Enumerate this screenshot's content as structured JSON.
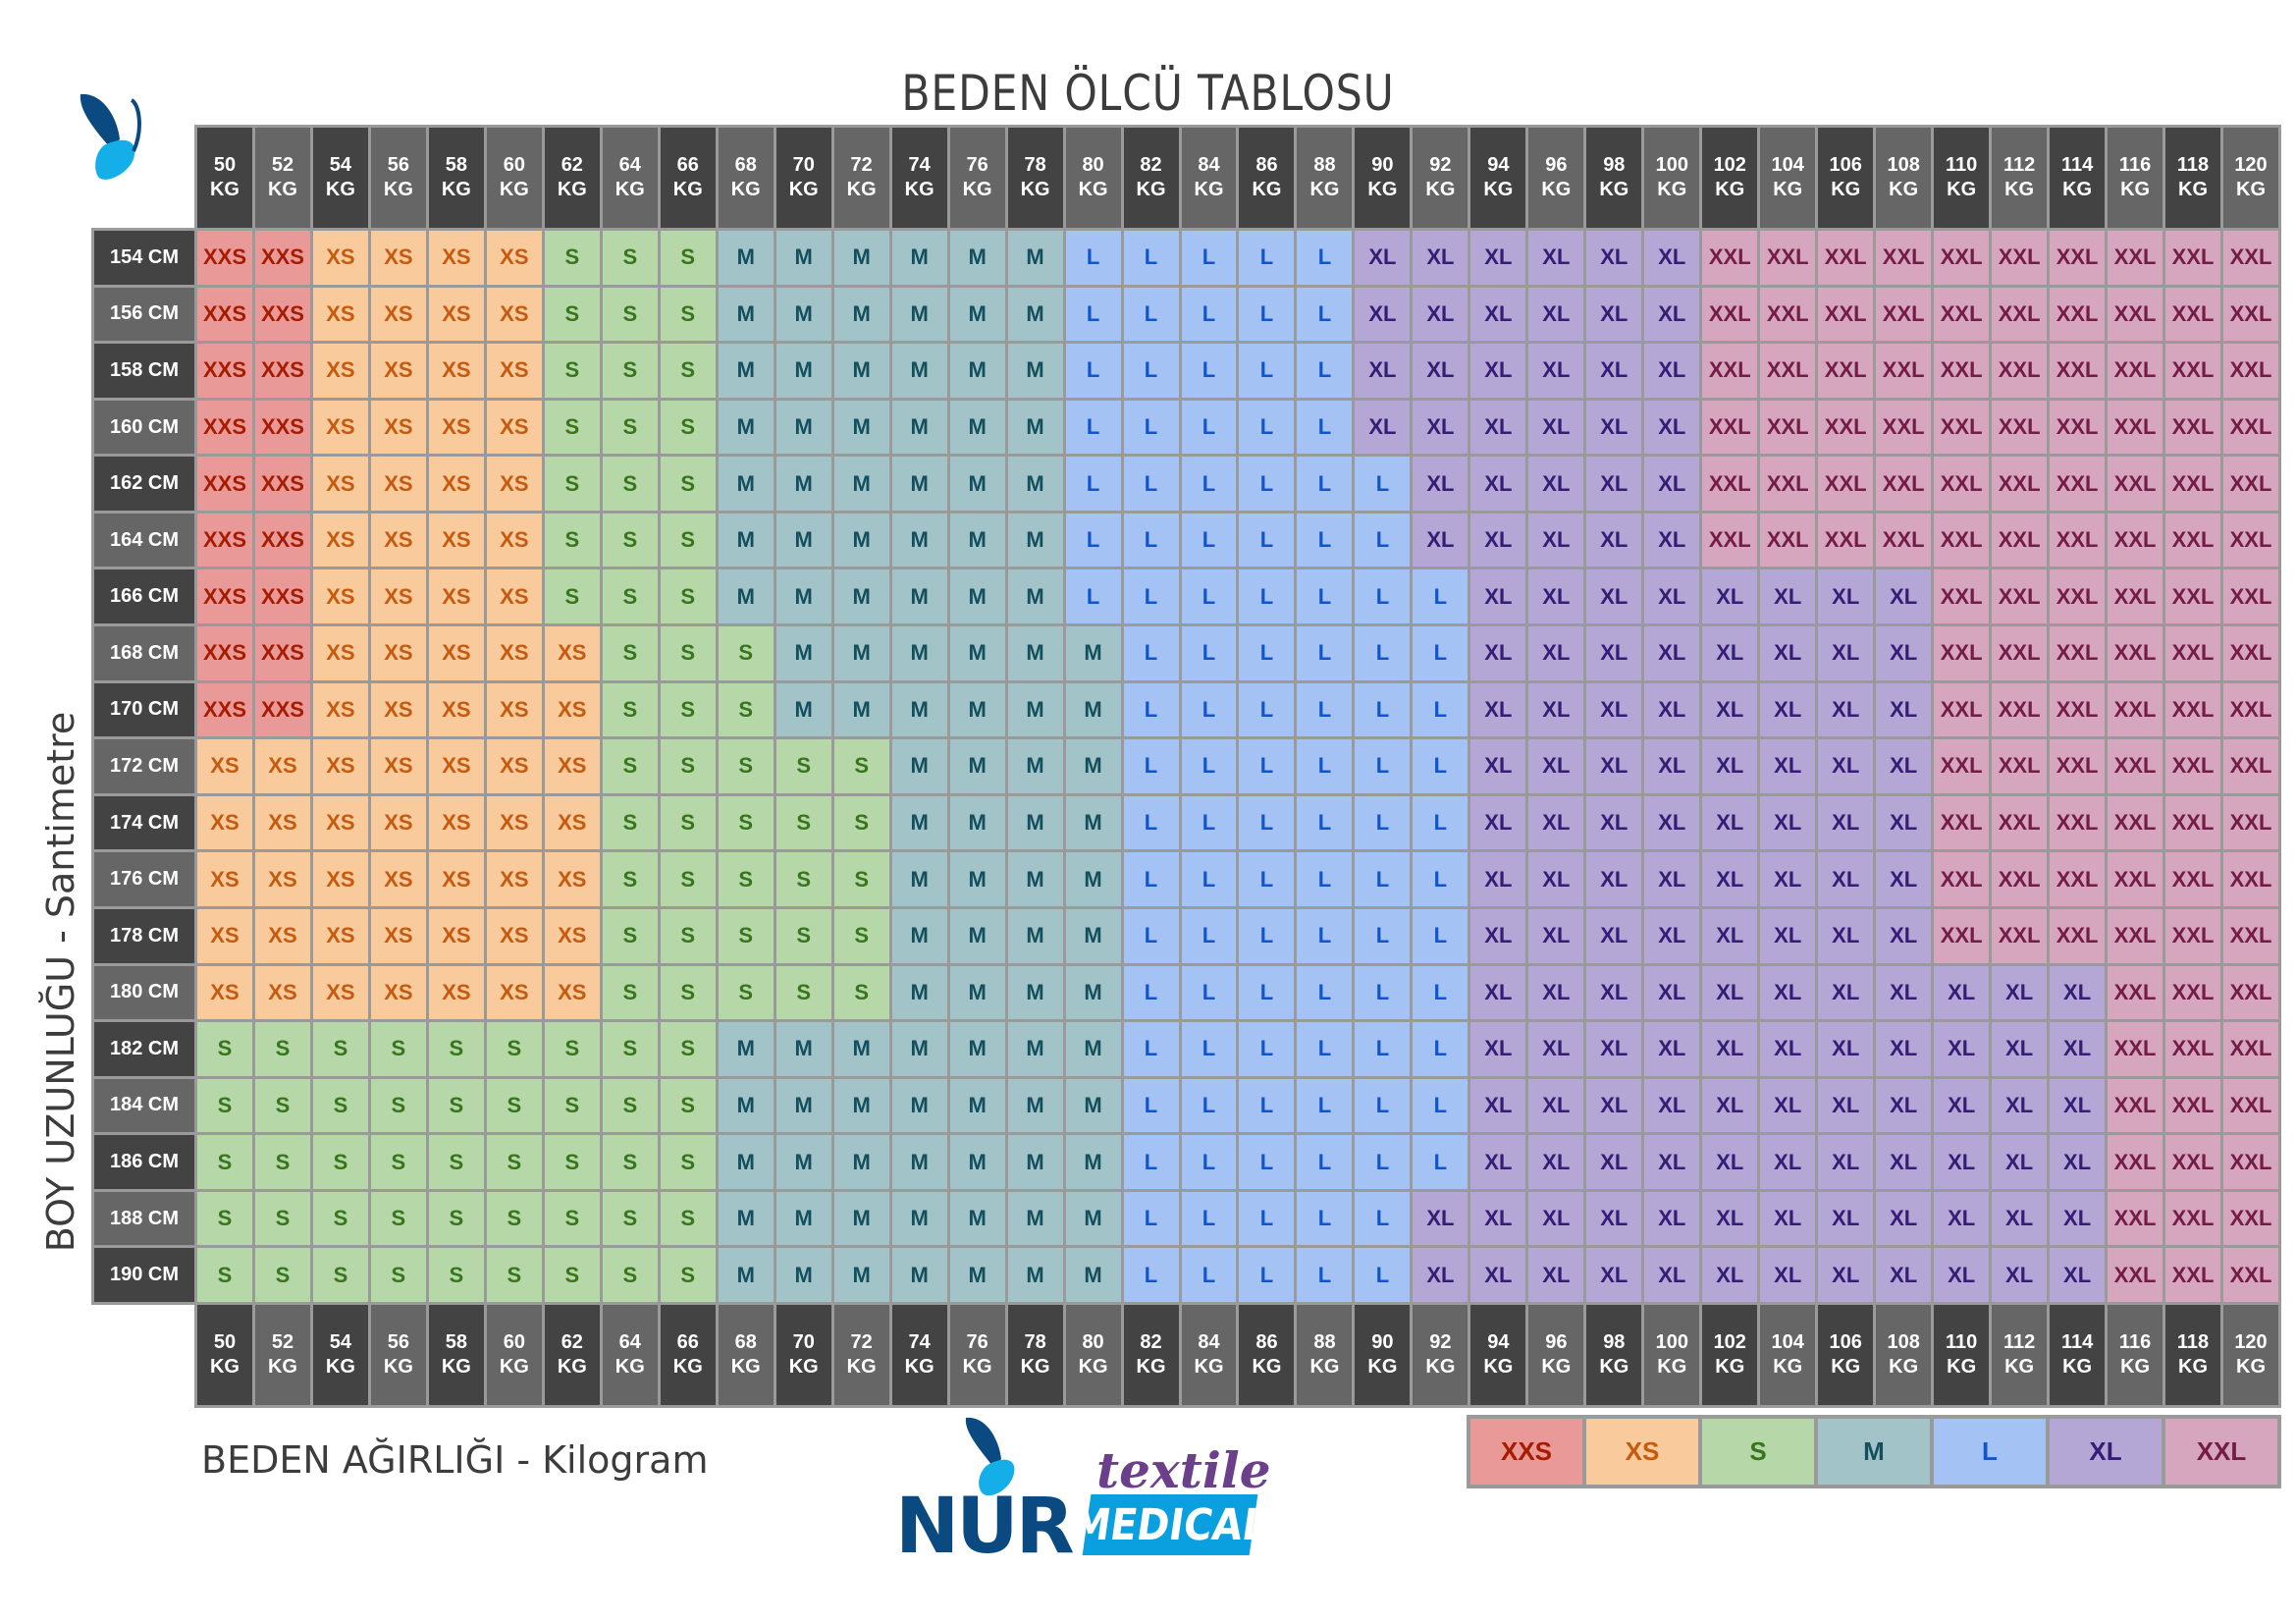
{
  "title": "BEDEN ÖLCÜ TABLOSU",
  "y_axis_label": "BOY UZUNLUĞU - Santimetre",
  "x_axis_label": "BEDEN AĞIRLIĞI - Kilogram",
  "weight_unit": "KG",
  "height_unit": "CM",
  "weights": [
    50,
    52,
    54,
    56,
    58,
    60,
    62,
    64,
    66,
    68,
    70,
    72,
    74,
    76,
    78,
    80,
    82,
    84,
    86,
    88,
    90,
    92,
    94,
    96,
    98,
    100,
    102,
    104,
    106,
    108,
    110,
    112,
    114,
    116,
    118,
    120
  ],
  "heights": [
    154,
    156,
    158,
    160,
    162,
    164,
    166,
    168,
    170,
    172,
    174,
    176,
    178,
    180,
    182,
    184,
    186,
    188,
    190
  ],
  "sizes": {
    "XXS": {
      "label": "XXS",
      "bg": "#ea9999",
      "fg": "#a61c00"
    },
    "XS": {
      "label": "XS",
      "bg": "#f9cb9c",
      "fg": "#c55a11"
    },
    "S": {
      "label": "S",
      "bg": "#b6d7a8",
      "fg": "#38761d"
    },
    "M": {
      "label": "M",
      "bg": "#a2c4c9",
      "fg": "#134f5c"
    },
    "L": {
      "label": "L",
      "bg": "#a4c2f4",
      "fg": "#1155cc"
    },
    "XL": {
      "label": "XL",
      "bg": "#b4a7d6",
      "fg": "#351c75"
    },
    "XXL": {
      "label": "XXL",
      "bg": "#d5a6bd",
      "fg": "#741b47"
    }
  },
  "legend": [
    "XXS",
    "XS",
    "S",
    "M",
    "L",
    "XL",
    "XXL"
  ],
  "header_colors": {
    "dark": "#434343",
    "gray": "#666666"
  },
  "grid": [
    [
      "XXS",
      "XXS",
      "XS",
      "XS",
      "XS",
      "XS",
      "S",
      "S",
      "S",
      "M",
      "M",
      "M",
      "M",
      "M",
      "M",
      "L",
      "L",
      "L",
      "L",
      "L",
      "XL",
      "XL",
      "XL",
      "XL",
      "XL",
      "XL",
      "XXL",
      "XXL",
      "XXL",
      "XXL",
      "XXL",
      "XXL",
      "XXL",
      "XXL",
      "XXL",
      "XXL"
    ],
    [
      "XXS",
      "XXS",
      "XS",
      "XS",
      "XS",
      "XS",
      "S",
      "S",
      "S",
      "M",
      "M",
      "M",
      "M",
      "M",
      "M",
      "L",
      "L",
      "L",
      "L",
      "L",
      "XL",
      "XL",
      "XL",
      "XL",
      "XL",
      "XL",
      "XXL",
      "XXL",
      "XXL",
      "XXL",
      "XXL",
      "XXL",
      "XXL",
      "XXL",
      "XXL",
      "XXL"
    ],
    [
      "XXS",
      "XXS",
      "XS",
      "XS",
      "XS",
      "XS",
      "S",
      "S",
      "S",
      "M",
      "M",
      "M",
      "M",
      "M",
      "M",
      "L",
      "L",
      "L",
      "L",
      "L",
      "XL",
      "XL",
      "XL",
      "XL",
      "XL",
      "XL",
      "XXL",
      "XXL",
      "XXL",
      "XXL",
      "XXL",
      "XXL",
      "XXL",
      "XXL",
      "XXL",
      "XXL"
    ],
    [
      "XXS",
      "XXS",
      "XS",
      "XS",
      "XS",
      "XS",
      "S",
      "S",
      "S",
      "M",
      "M",
      "M",
      "M",
      "M",
      "M",
      "L",
      "L",
      "L",
      "L",
      "L",
      "XL",
      "XL",
      "XL",
      "XL",
      "XL",
      "XL",
      "XXL",
      "XXL",
      "XXL",
      "XXL",
      "XXL",
      "XXL",
      "XXL",
      "XXL",
      "XXL",
      "XXL"
    ],
    [
      "XXS",
      "XXS",
      "XS",
      "XS",
      "XS",
      "XS",
      "S",
      "S",
      "S",
      "M",
      "M",
      "M",
      "M",
      "M",
      "M",
      "L",
      "L",
      "L",
      "L",
      "L",
      "L",
      "XL",
      "XL",
      "XL",
      "XL",
      "XL",
      "XXL",
      "XXL",
      "XXL",
      "XXL",
      "XXL",
      "XXL",
      "XXL",
      "XXL",
      "XXL",
      "XXL"
    ],
    [
      "XXS",
      "XXS",
      "XS",
      "XS",
      "XS",
      "XS",
      "S",
      "S",
      "S",
      "M",
      "M",
      "M",
      "M",
      "M",
      "M",
      "L",
      "L",
      "L",
      "L",
      "L",
      "L",
      "XL",
      "XL",
      "XL",
      "XL",
      "XL",
      "XXL",
      "XXL",
      "XXL",
      "XXL",
      "XXL",
      "XXL",
      "XXL",
      "XXL",
      "XXL",
      "XXL"
    ],
    [
      "XXS",
      "XXS",
      "XS",
      "XS",
      "XS",
      "XS",
      "S",
      "S",
      "S",
      "M",
      "M",
      "M",
      "M",
      "M",
      "M",
      "L",
      "L",
      "L",
      "L",
      "L",
      "L",
      "L",
      "XL",
      "XL",
      "XL",
      "XL",
      "XL",
      "XL",
      "XL",
      "XL",
      "XXL",
      "XXL",
      "XXL",
      "XXL",
      "XXL",
      "XXL"
    ],
    [
      "XXS",
      "XXS",
      "XS",
      "XS",
      "XS",
      "XS",
      "XS",
      "S",
      "S",
      "S",
      "M",
      "M",
      "M",
      "M",
      "M",
      "M",
      "L",
      "L",
      "L",
      "L",
      "L",
      "L",
      "XL",
      "XL",
      "XL",
      "XL",
      "XL",
      "XL",
      "XL",
      "XL",
      "XXL",
      "XXL",
      "XXL",
      "XXL",
      "XXL",
      "XXL"
    ],
    [
      "XXS",
      "XXS",
      "XS",
      "XS",
      "XS",
      "XS",
      "XS",
      "S",
      "S",
      "S",
      "M",
      "M",
      "M",
      "M",
      "M",
      "M",
      "L",
      "L",
      "L",
      "L",
      "L",
      "L",
      "XL",
      "XL",
      "XL",
      "XL",
      "XL",
      "XL",
      "XL",
      "XL",
      "XXL",
      "XXL",
      "XXL",
      "XXL",
      "XXL",
      "XXL"
    ],
    [
      "XS",
      "XS",
      "XS",
      "XS",
      "XS",
      "XS",
      "XS",
      "S",
      "S",
      "S",
      "S",
      "S",
      "M",
      "M",
      "M",
      "M",
      "L",
      "L",
      "L",
      "L",
      "L",
      "L",
      "XL",
      "XL",
      "XL",
      "XL",
      "XL",
      "XL",
      "XL",
      "XL",
      "XXL",
      "XXL",
      "XXL",
      "XXL",
      "XXL",
      "XXL"
    ],
    [
      "XS",
      "XS",
      "XS",
      "XS",
      "XS",
      "XS",
      "XS",
      "S",
      "S",
      "S",
      "S",
      "S",
      "M",
      "M",
      "M",
      "M",
      "L",
      "L",
      "L",
      "L",
      "L",
      "L",
      "XL",
      "XL",
      "XL",
      "XL",
      "XL",
      "XL",
      "XL",
      "XL",
      "XXL",
      "XXL",
      "XXL",
      "XXL",
      "XXL",
      "XXL"
    ],
    [
      "XS",
      "XS",
      "XS",
      "XS",
      "XS",
      "XS",
      "XS",
      "S",
      "S",
      "S",
      "S",
      "S",
      "M",
      "M",
      "M",
      "M",
      "L",
      "L",
      "L",
      "L",
      "L",
      "L",
      "XL",
      "XL",
      "XL",
      "XL",
      "XL",
      "XL",
      "XL",
      "XL",
      "XXL",
      "XXL",
      "XXL",
      "XXL",
      "XXL",
      "XXL"
    ],
    [
      "XS",
      "XS",
      "XS",
      "XS",
      "XS",
      "XS",
      "XS",
      "S",
      "S",
      "S",
      "S",
      "S",
      "M",
      "M",
      "M",
      "M",
      "L",
      "L",
      "L",
      "L",
      "L",
      "L",
      "XL",
      "XL",
      "XL",
      "XL",
      "XL",
      "XL",
      "XL",
      "XL",
      "XXL",
      "XXL",
      "XXL",
      "XXL",
      "XXL",
      "XXL"
    ],
    [
      "XS",
      "XS",
      "XS",
      "XS",
      "XS",
      "XS",
      "XS",
      "S",
      "S",
      "S",
      "S",
      "S",
      "M",
      "M",
      "M",
      "M",
      "L",
      "L",
      "L",
      "L",
      "L",
      "L",
      "XL",
      "XL",
      "XL",
      "XL",
      "XL",
      "XL",
      "XL",
      "XL",
      "XL",
      "XL",
      "XL",
      "XXL",
      "XXL",
      "XXL"
    ],
    [
      "S",
      "S",
      "S",
      "S",
      "S",
      "S",
      "S",
      "S",
      "S",
      "M",
      "M",
      "M",
      "M",
      "M",
      "M",
      "M",
      "L",
      "L",
      "L",
      "L",
      "L",
      "L",
      "XL",
      "XL",
      "XL",
      "XL",
      "XL",
      "XL",
      "XL",
      "XL",
      "XL",
      "XL",
      "XL",
      "XXL",
      "XXL",
      "XXL"
    ],
    [
      "S",
      "S",
      "S",
      "S",
      "S",
      "S",
      "S",
      "S",
      "S",
      "M",
      "M",
      "M",
      "M",
      "M",
      "M",
      "M",
      "L",
      "L",
      "L",
      "L",
      "L",
      "L",
      "XL",
      "XL",
      "XL",
      "XL",
      "XL",
      "XL",
      "XL",
      "XL",
      "XL",
      "XL",
      "XL",
      "XXL",
      "XXL",
      "XXL"
    ],
    [
      "S",
      "S",
      "S",
      "S",
      "S",
      "S",
      "S",
      "S",
      "S",
      "M",
      "M",
      "M",
      "M",
      "M",
      "M",
      "M",
      "L",
      "L",
      "L",
      "L",
      "L",
      "L",
      "XL",
      "XL",
      "XL",
      "XL",
      "XL",
      "XL",
      "XL",
      "XL",
      "XL",
      "XL",
      "XL",
      "XXL",
      "XXL",
      "XXL"
    ],
    [
      "S",
      "S",
      "S",
      "S",
      "S",
      "S",
      "S",
      "S",
      "S",
      "M",
      "M",
      "M",
      "M",
      "M",
      "M",
      "M",
      "L",
      "L",
      "L",
      "L",
      "L",
      "XL",
      "XL",
      "XL",
      "XL",
      "XL",
      "XL",
      "XL",
      "XL",
      "XL",
      "XL",
      "XL",
      "XL",
      "XXL",
      "XXL",
      "XXL"
    ],
    [
      "S",
      "S",
      "S",
      "S",
      "S",
      "S",
      "S",
      "S",
      "S",
      "M",
      "M",
      "M",
      "M",
      "M",
      "M",
      "M",
      "L",
      "L",
      "L",
      "L",
      "L",
      "XL",
      "XL",
      "XL",
      "XL",
      "XL",
      "XL",
      "XL",
      "XL",
      "XL",
      "XL",
      "XL",
      "XL",
      "XXL",
      "XXL",
      "XXL"
    ]
  ],
  "logo": {
    "brand": "NUR",
    "sub": "textile",
    "line2": "MEDICAL",
    "colors": {
      "dark_blue": "#0a4a80",
      "light_blue": "#0aa0e0",
      "purple": "#6b3f8a"
    }
  }
}
